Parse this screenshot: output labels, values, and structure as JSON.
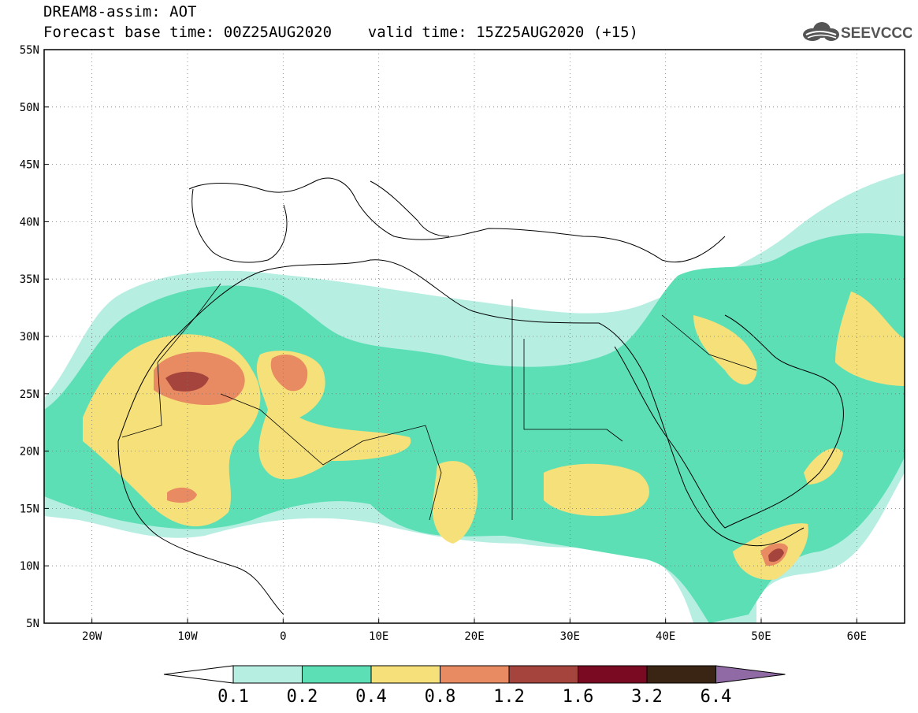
{
  "header": {
    "title_line1": "DREAM8-assim: AOT",
    "title_line2": "Forecast base time: 00Z25AUG2020    valid time: 15Z25AUG2020 (+15)",
    "logo_text": "SEEVCCC"
  },
  "map": {
    "lon_labels": [
      "20W",
      "10W",
      "0",
      "10E",
      "20E",
      "30E",
      "40E",
      "50E",
      "60E"
    ],
    "lat_labels": [
      "55N",
      "50N",
      "45N",
      "40N",
      "35N",
      "30N",
      "25N",
      "20N",
      "15N",
      "10N",
      "5N"
    ],
    "lon_values": [
      -20,
      -10,
      0,
      10,
      20,
      30,
      40,
      50,
      60
    ],
    "lat_values": [
      55,
      50,
      45,
      40,
      35,
      30,
      25,
      20,
      15,
      10,
      5
    ],
    "lon_range": [
      -25,
      65
    ],
    "lat_range": [
      5,
      55
    ],
    "grid": "dotted"
  },
  "colorbar": {
    "labels": [
      "0.1",
      "0.2",
      "0.4",
      "0.8",
      "1.2",
      "1.6",
      "3.2",
      "6.4"
    ],
    "colors": [
      "#ffffff",
      "#b7eee2",
      "#5ddfb5",
      "#f5e07a",
      "#e98b62",
      "#a5443d",
      "#7a0a22",
      "#3a2414",
      "#8f6aa5"
    ]
  },
  "icons": {
    "logo": "cloud-logo-icon"
  }
}
